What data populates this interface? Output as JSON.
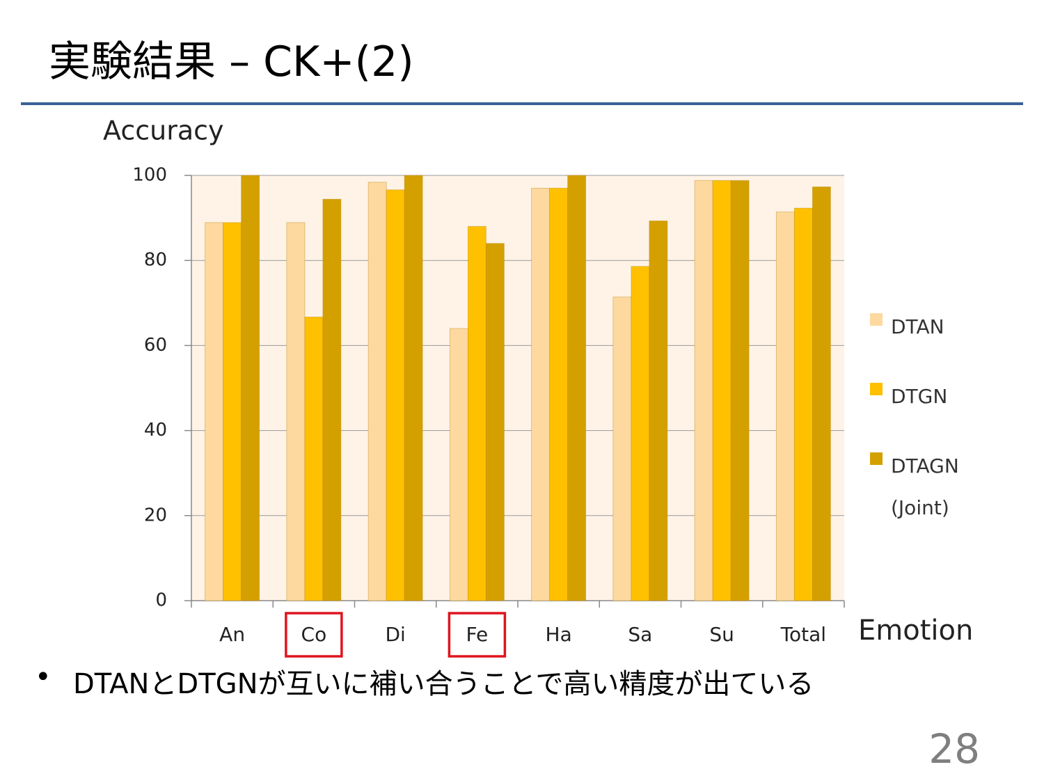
{
  "slide": {
    "title": "実験結果 – CK+(2)",
    "bullet": "DTANとDTGNが互いに補い合うことで高い精度が出ている",
    "page_number": "28"
  },
  "chart_data": {
    "type": "bar",
    "y_label": "Accuracy",
    "x_label": "Emotion",
    "categories": [
      "An",
      "Co",
      "Di",
      "Fe",
      "Ha",
      "Sa",
      "Su",
      "Total"
    ],
    "series": [
      {
        "name": "DTAN",
        "color": "#fdd9a0",
        "values": [
          88.9,
          88.9,
          98.4,
          64,
          97,
          71.4,
          98.8,
          91.4
        ]
      },
      {
        "name": "DTGN",
        "color": "#ffc000",
        "values": [
          88.9,
          66.7,
          96.6,
          88,
          97,
          78.6,
          98.8,
          92.3
        ]
      },
      {
        "name": "DTAGN (Joint)",
        "color": "#d4a000",
        "values": [
          100,
          94.4,
          100,
          84,
          100,
          89.3,
          98.8,
          97.3
        ]
      }
    ],
    "ylim": [
      0,
      100
    ],
    "yticks": [
      0,
      20,
      40,
      60,
      80,
      100
    ],
    "grid": true,
    "legend": "right",
    "highlight": [
      1,
      3
    ]
  }
}
